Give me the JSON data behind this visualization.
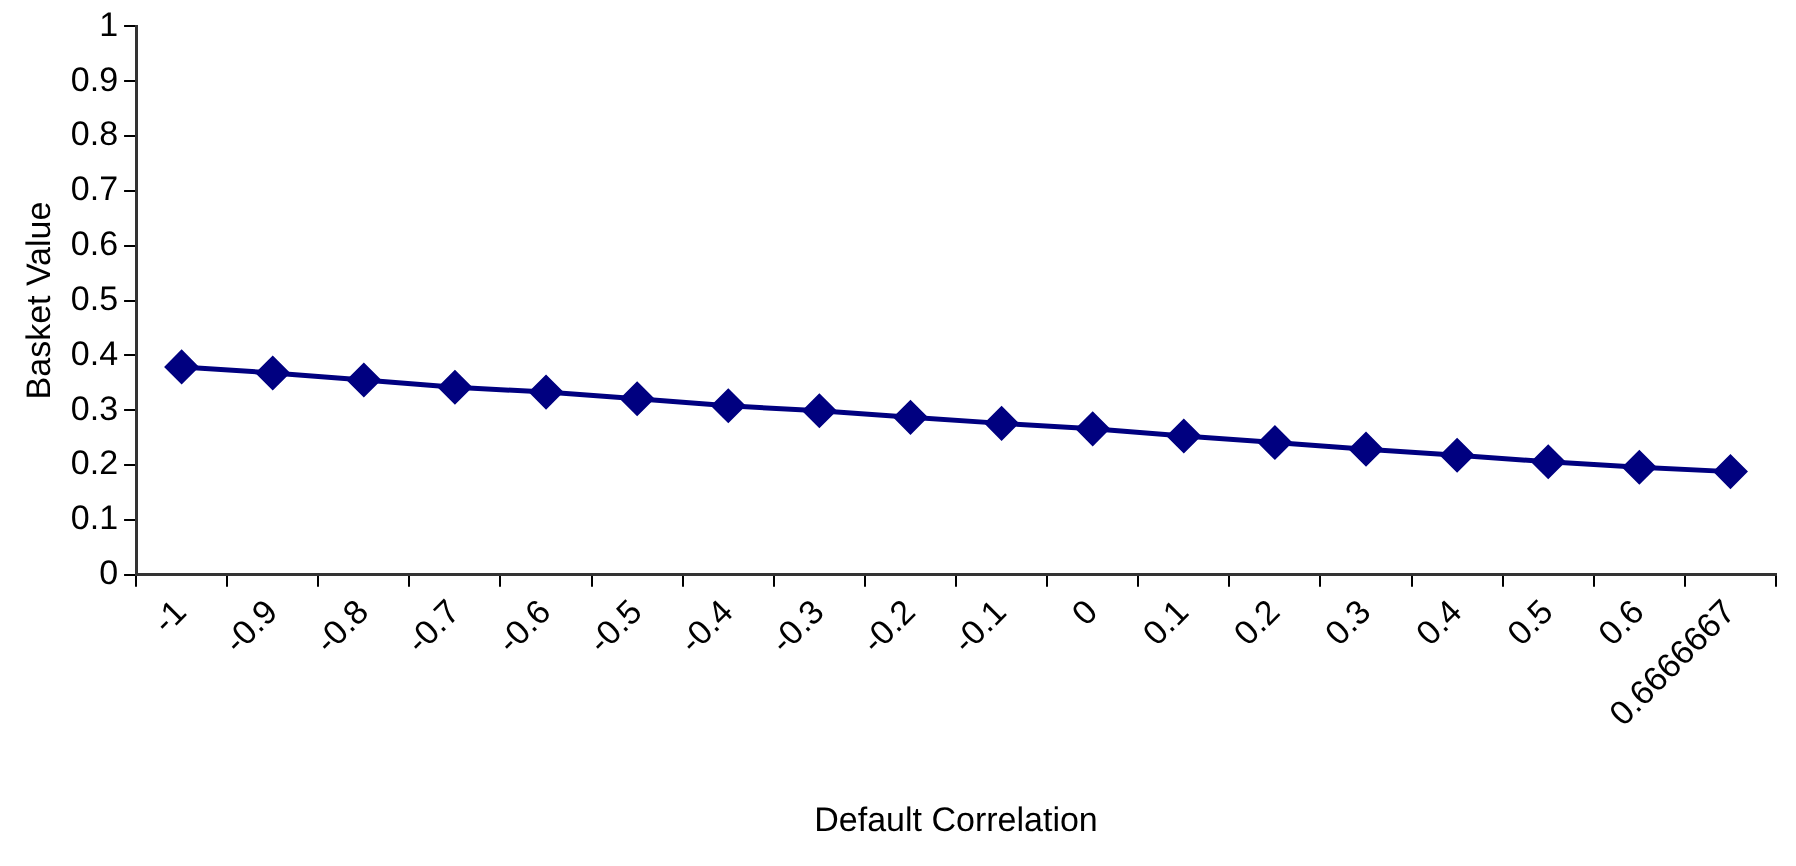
{
  "chart_data": {
    "type": "line",
    "xlabel": "Default Correlation",
    "ylabel": "Basket Value",
    "categories": [
      "-1",
      "-0.9",
      "-0.8",
      "-0.7",
      "-0.6",
      "-0.5",
      "-0.4",
      "-0.3",
      "-0.2",
      "-0.1",
      "0",
      "0.1",
      "0.2",
      "0.3",
      "0.4",
      "0.5",
      "0.6",
      "0.6666667"
    ],
    "series": [
      {
        "color": "#000080",
        "values": [
          0.379,
          0.368,
          0.355,
          0.342,
          0.333,
          0.321,
          0.308,
          0.299,
          0.287,
          0.276,
          0.266,
          0.253,
          0.241,
          0.229,
          0.218,
          0.206,
          0.196,
          0.188
        ]
      }
    ],
    "ylim": [
      0,
      1
    ],
    "yticks": [
      0,
      0.1,
      0.2,
      0.3,
      0.4,
      0.5,
      0.6,
      0.7,
      0.8,
      0.9,
      1
    ],
    "grid": false,
    "legend": false,
    "marker": "diamond",
    "line_style": "solid"
  }
}
